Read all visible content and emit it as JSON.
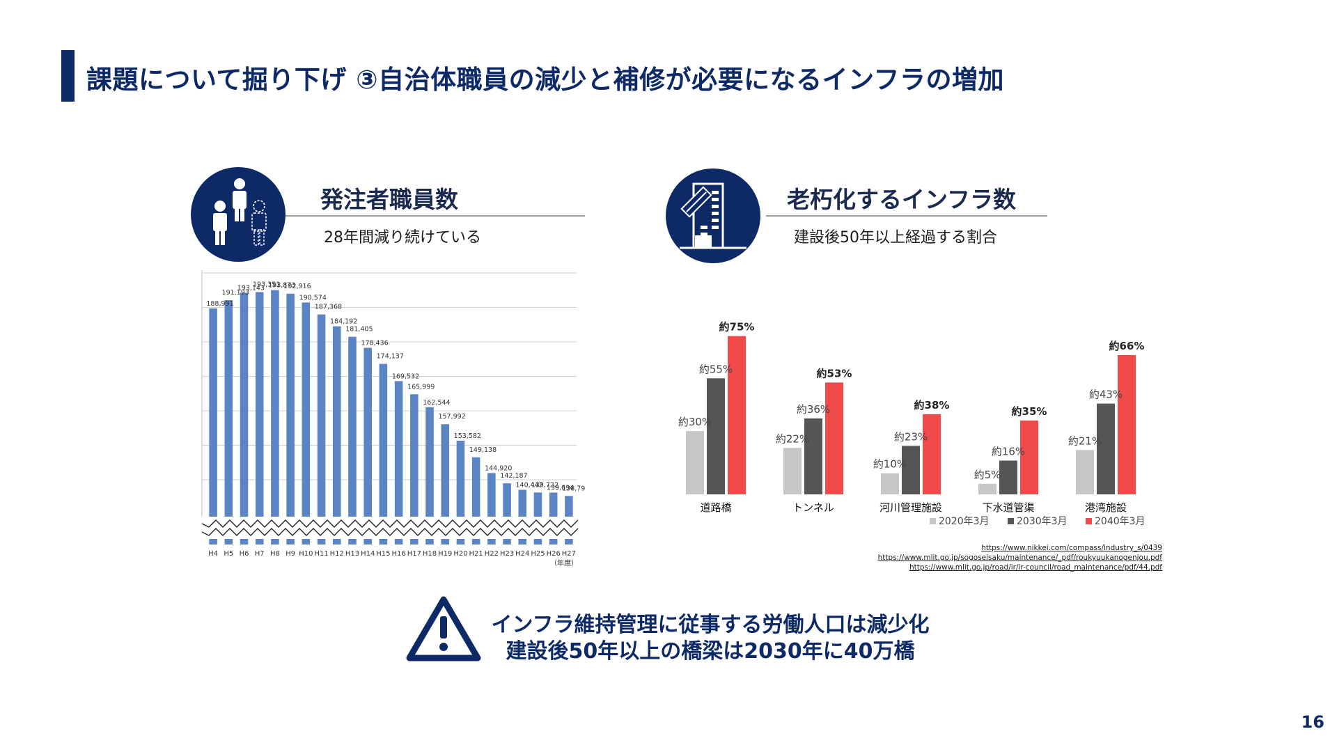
{
  "title": "課題について掘り下げ ③自治体職員の減少と補修が必要になるインフラの増加",
  "left": {
    "heading": "発注者職員数",
    "subheading": "28年間減り続けている",
    "icon": "people-icon"
  },
  "right": {
    "heading": "老朽化するインフラ数",
    "subheading": "建設後50年以上経過する割合",
    "icon": "aging-building-icon"
  },
  "chart_data": [
    {
      "type": "bar",
      "categories": [
        "H4",
        "H5",
        "H6",
        "H7",
        "H8",
        "H9",
        "H10",
        "H11",
        "H12",
        "H13",
        "H14",
        "H15",
        "H16",
        "H17",
        "H18",
        "H19",
        "H20",
        "H21",
        "H22",
        "H23",
        "H24",
        "H25",
        "H26",
        "H27"
      ],
      "values": [
        188991,
        191193,
        193143,
        193351,
        193873,
        192916,
        190574,
        187368,
        184192,
        181405,
        178436,
        174137,
        169532,
        165999,
        162544,
        157992,
        153582,
        149138,
        144920,
        142187,
        140442,
        139722,
        139694,
        138795
      ],
      "value_labels": [
        "188,991",
        "191,193",
        "193,143",
        "193,351",
        "193,873",
        "192,916",
        "190,574",
        "187,368",
        "184,192",
        "181,405",
        "178,436",
        "174,137",
        "169,532",
        "165,999",
        "162,544",
        "157,992",
        "153,582",
        "149,138",
        "144,920",
        "142,187",
        "140,442",
        "139,722",
        "139,694",
        "138,795"
      ],
      "xunit": "（年度）",
      "ylim": [
        134000,
        194000
      ],
      "axis_break": true,
      "grid": true,
      "color": "#5b84c4"
    },
    {
      "type": "bar",
      "categories": [
        "道路橋",
        "トンネル",
        "河川管理施設",
        "下水道管渠",
        "港湾施設"
      ],
      "series": [
        {
          "name": "2020年3月",
          "values": [
            30,
            22,
            10,
            5,
            21
          ],
          "labels": [
            "約30%",
            "約22%",
            "約10%",
            "約5%",
            "約21%"
          ],
          "color": "#c6c6c6"
        },
        {
          "name": "2030年3月",
          "values": [
            55,
            36,
            23,
            16,
            43
          ],
          "labels": [
            "約55%",
            "約36%",
            "約23%",
            "約16%",
            "約43%"
          ],
          "color": "#555555"
        },
        {
          "name": "2040年3月",
          "values": [
            75,
            53,
            38,
            35,
            66
          ],
          "labels": [
            "約75%",
            "約53%",
            "約38%",
            "約35%",
            "約66%"
          ],
          "color": "#f04a4a"
        }
      ],
      "ylim": [
        0,
        80
      ],
      "legend": "bottom-right",
      "grid": false
    }
  ],
  "sources": [
    "https://www.nikkei.com/compass/industry_s/0439",
    "https://www.mlit.go.jp/sogoseisaku/maintenance/_pdf/roukyuukanogenjou.pdf",
    "https://www.mlit.go.jp/road/ir/ir-council/road_maintenance/pdf/44.pdf"
  ],
  "warning": {
    "icon": "warning-icon",
    "line1": "インフラ維持管理に従事する労働人口は減少化",
    "line2": "建設後50年以上の橋梁は2030年に40万橋"
  },
  "page_number": "16"
}
